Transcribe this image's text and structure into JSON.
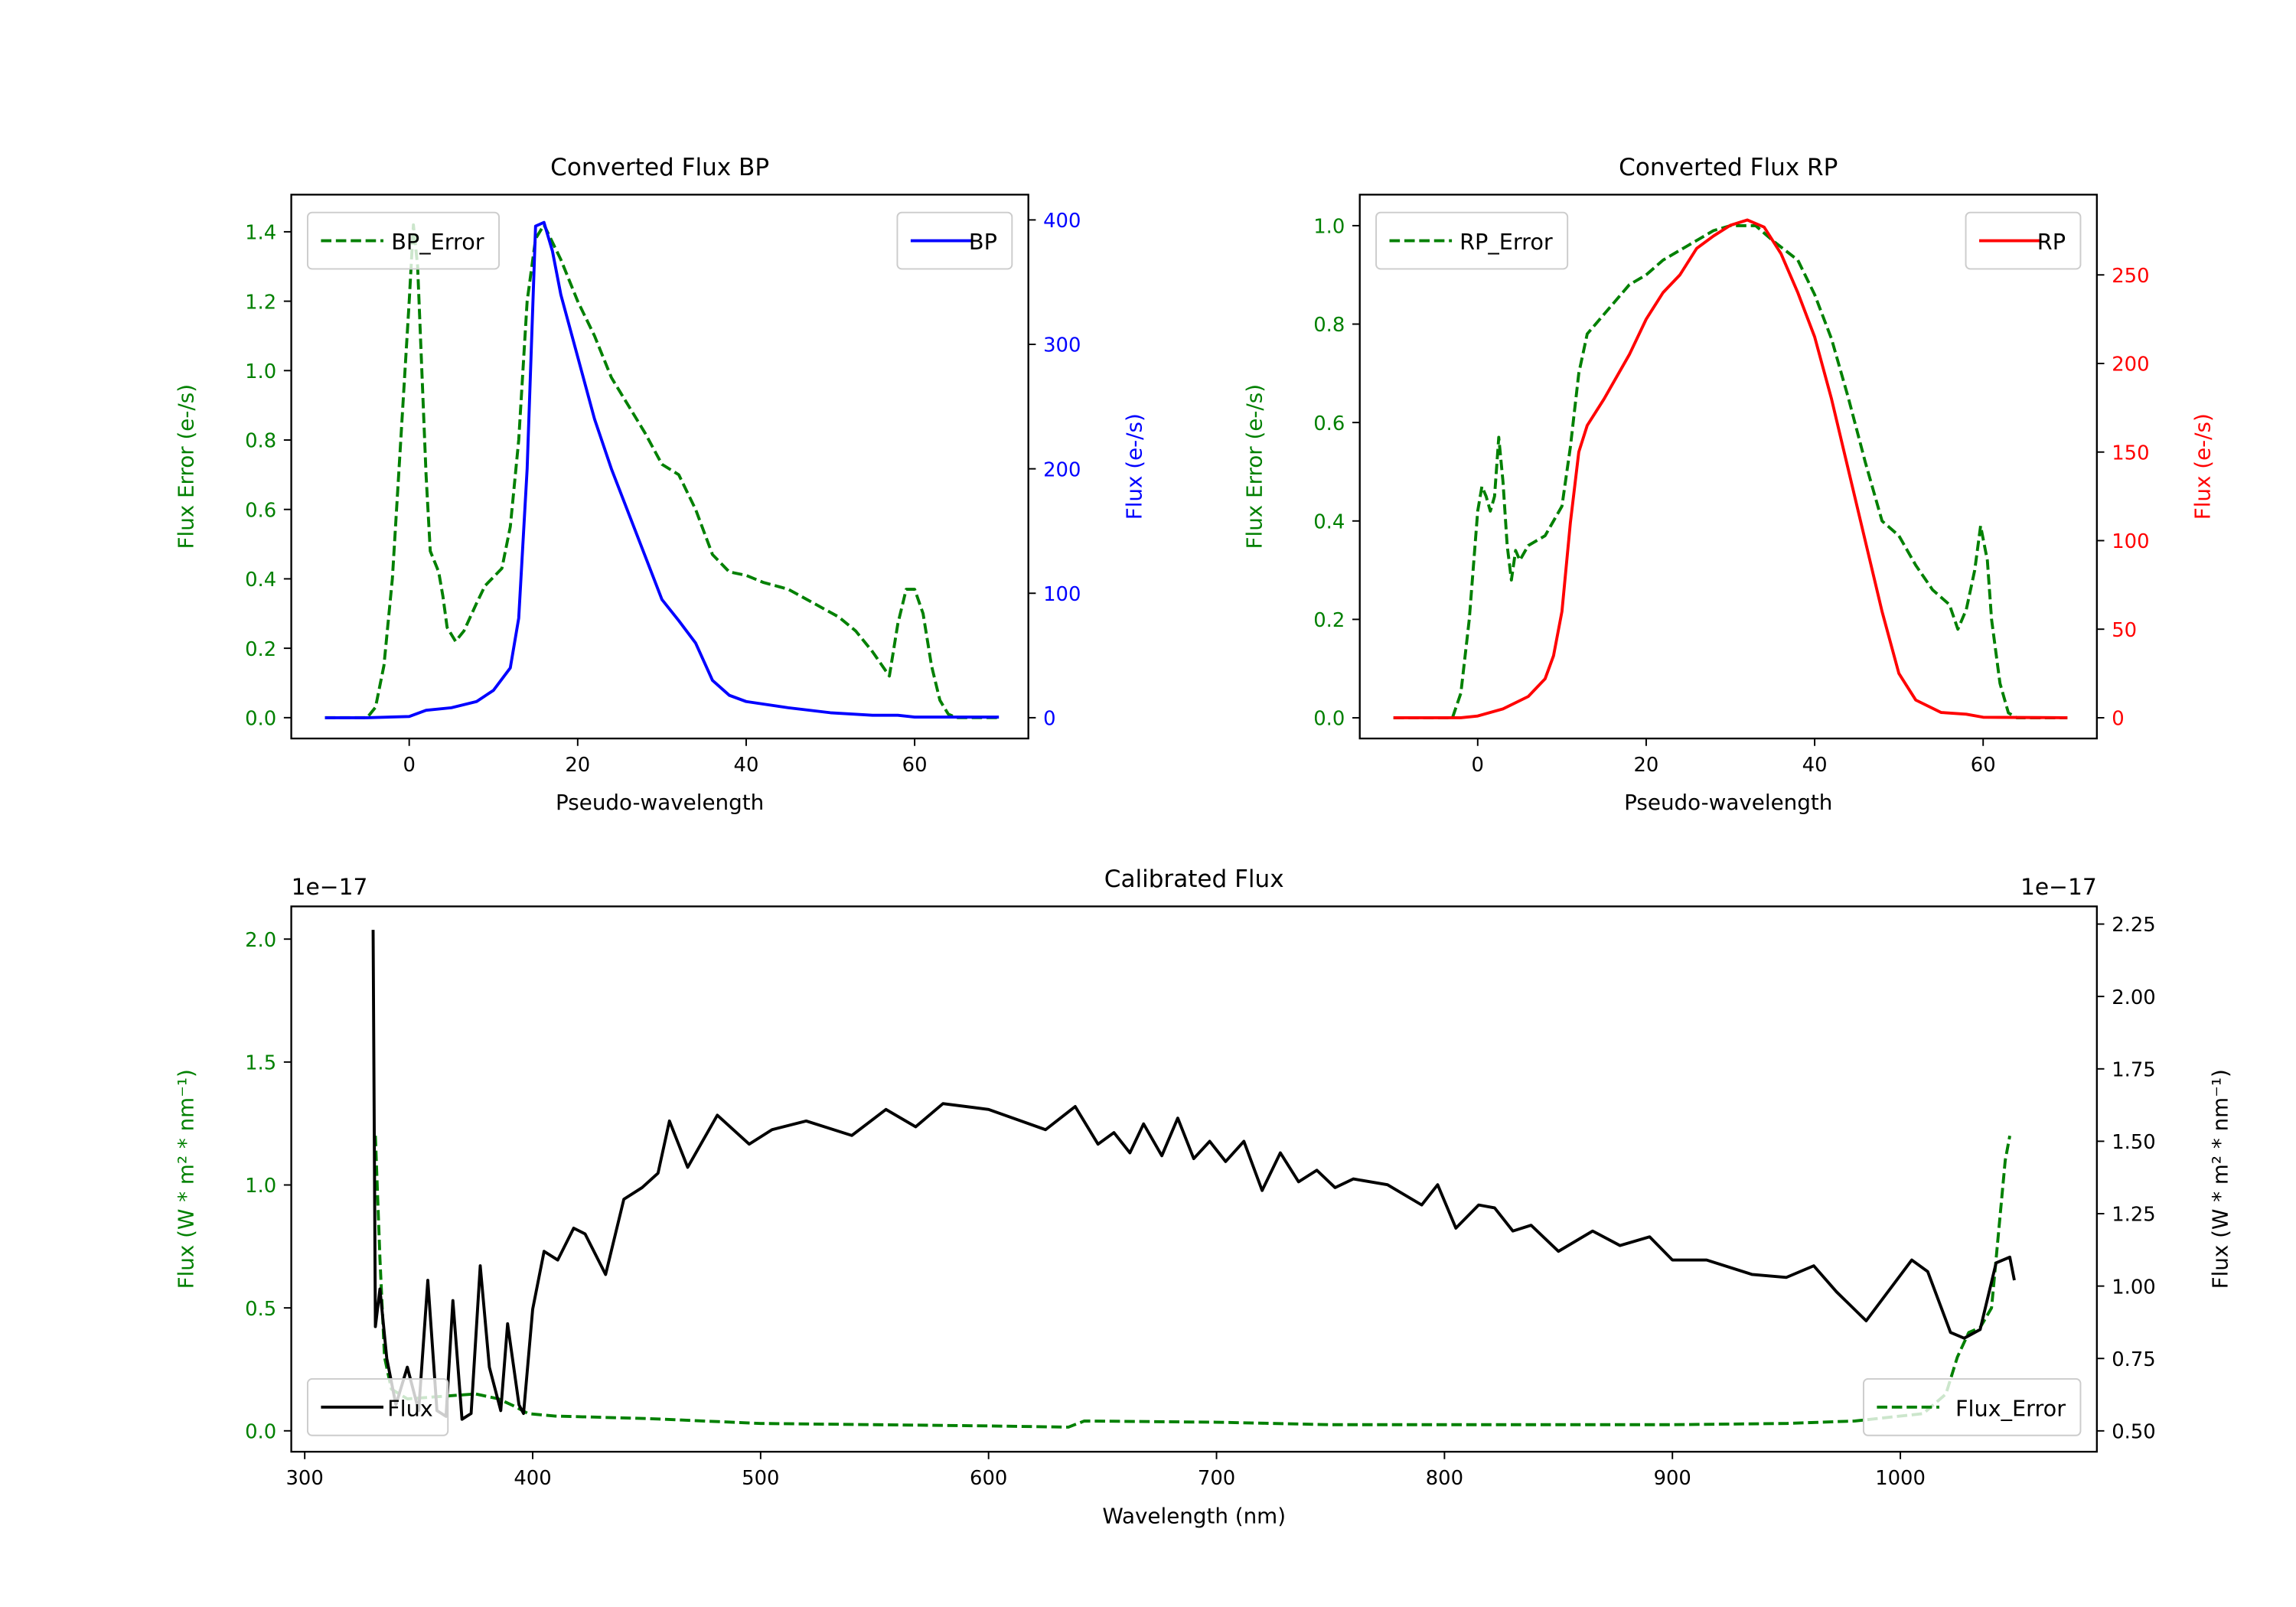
{
  "colors": {
    "error": "#008000",
    "bp": "#0000ff",
    "rp": "#ff0000",
    "flux": "#000000"
  },
  "chart_data": [
    {
      "type": "line",
      "title": "Converted Flux BP",
      "xlabel": "Pseudo-wavelength",
      "ylabel_left": "Flux Error (e-/s)",
      "ylabel_right": "Flux (e-/s)",
      "xlim": [
        -14,
        73.5
      ],
      "ylim_left": [
        -0.06,
        1.507
      ],
      "ylim_right": [
        -16.7,
        420.3
      ],
      "xticks": [
        0,
        20,
        40,
        60
      ],
      "yticks_left": [
        "0.0",
        "0.2",
        "0.4",
        "0.6",
        "0.8",
        "1.0",
        "1.2",
        "1.4"
      ],
      "yticks_right": [
        "0",
        "100",
        "200",
        "300",
        "400"
      ],
      "left_axis_color": "#008000",
      "right_axis_color": "#0000ff",
      "legend_left": {
        "label": "BP_Error",
        "placement": "upper-left"
      },
      "legend_right": {
        "label": "BP",
        "placement": "upper-right"
      },
      "series": [
        {
          "name": "BP_Error",
          "axis": "left",
          "style": "dashed",
          "color": "#008000",
          "x": [
            -10,
            -5,
            -4,
            -3,
            -2,
            -1,
            0,
            0.5,
            1,
            1.5,
            2,
            2.5,
            3,
            3.5,
            4,
            4.5,
            5.5,
            6.5,
            8,
            9,
            11,
            12,
            13,
            14,
            15,
            16,
            18,
            20,
            22,
            24,
            26,
            28,
            30,
            32,
            34,
            36,
            38,
            40,
            42,
            45,
            48,
            51,
            53,
            55,
            57,
            58,
            59,
            60,
            61,
            62,
            63,
            64,
            65,
            70
          ],
          "y": [
            0,
            0,
            0.03,
            0.15,
            0.4,
            0.8,
            1.2,
            1.42,
            1.3,
            1.0,
            0.7,
            0.48,
            0.45,
            0.42,
            0.35,
            0.26,
            0.22,
            0.25,
            0.33,
            0.38,
            0.43,
            0.55,
            0.8,
            1.2,
            1.38,
            1.42,
            1.32,
            1.2,
            1.1,
            0.98,
            0.9,
            0.82,
            0.73,
            0.7,
            0.6,
            0.47,
            0.42,
            0.41,
            0.39,
            0.37,
            0.33,
            0.29,
            0.25,
            0.19,
            0.12,
            0.27,
            0.37,
            0.37,
            0.3,
            0.15,
            0.05,
            0.01,
            0,
            0
          ]
        },
        {
          "name": "BP",
          "axis": "right",
          "style": "solid",
          "color": "#0000ff",
          "x": [
            -10,
            -5,
            0,
            2,
            5,
            8,
            10,
            12,
            13,
            14,
            15,
            16,
            17,
            18,
            20,
            22,
            24,
            26,
            28,
            30,
            32,
            34,
            36,
            38,
            40,
            42,
            45,
            50,
            55,
            58,
            60,
            65,
            70
          ],
          "y": [
            0,
            0,
            1,
            6,
            8,
            13,
            22,
            40,
            80,
            200,
            395,
            398,
            375,
            340,
            290,
            240,
            200,
            165,
            130,
            95,
            78,
            60,
            30,
            18,
            13,
            11,
            8,
            4,
            2,
            2,
            0.5,
            0.5,
            0.5
          ]
        }
      ]
    },
    {
      "type": "line",
      "title": "Converted Flux RP",
      "xlabel": "Pseudo-wavelength",
      "ylabel_left": "Flux Error (e-/s)",
      "ylabel_right": "Flux (e-/s)",
      "xlim": [
        -14,
        73.5
      ],
      "ylim_left": [
        -0.042,
        1.063
      ],
      "ylim_right": [
        -11.7,
        295.3
      ],
      "xticks": [
        0,
        20,
        40,
        60
      ],
      "yticks_left": [
        "0.0",
        "0.2",
        "0.4",
        "0.6",
        "0.8",
        "1.0"
      ],
      "yticks_right": [
        "0",
        "50",
        "100",
        "150",
        "200",
        "250"
      ],
      "left_axis_color": "#008000",
      "right_axis_color": "#ff0000",
      "legend_left": {
        "label": "RP_Error",
        "placement": "upper-left"
      },
      "legend_right": {
        "label": "RP",
        "placement": "upper-right"
      },
      "series": [
        {
          "name": "RP_Error",
          "axis": "left",
          "style": "dashed",
          "color": "#008000",
          "x": [
            -10,
            -3,
            -2,
            -1,
            0,
            0.5,
            1,
            1.5,
            2,
            2.5,
            3,
            3.5,
            4,
            4.5,
            5,
            6,
            8,
            10,
            11,
            12,
            13,
            15,
            18,
            20,
            22,
            25,
            28,
            30,
            33,
            35,
            38,
            40,
            42,
            44,
            46,
            48,
            50,
            52,
            54,
            56,
            57,
            58,
            59,
            59.7,
            60.5,
            61,
            62,
            63,
            64,
            70
          ],
          "y": [
            0,
            0,
            0.05,
            0.2,
            0.42,
            0.47,
            0.45,
            0.42,
            0.45,
            0.57,
            0.48,
            0.35,
            0.28,
            0.34,
            0.32,
            0.35,
            0.37,
            0.43,
            0.55,
            0.7,
            0.78,
            0.82,
            0.88,
            0.9,
            0.93,
            0.96,
            0.99,
            1.0,
            1.0,
            0.97,
            0.93,
            0.86,
            0.77,
            0.65,
            0.52,
            0.4,
            0.37,
            0.31,
            0.26,
            0.23,
            0.18,
            0.22,
            0.3,
            0.39,
            0.32,
            0.2,
            0.07,
            0.01,
            0,
            0
          ]
        },
        {
          "name": "RP",
          "axis": "right",
          "style": "solid",
          "color": "#ff0000",
          "x": [
            -10,
            -2,
            0,
            3,
            6,
            8,
            9,
            10,
            11,
            12,
            13,
            15,
            18,
            20,
            22,
            24,
            26,
            28,
            30,
            32,
            34,
            36,
            38,
            40,
            42,
            44,
            46,
            48,
            50,
            52,
            55,
            58,
            60,
            70
          ],
          "y": [
            0,
            0,
            1,
            5,
            12,
            22,
            35,
            60,
            110,
            150,
            165,
            180,
            205,
            225,
            240,
            250,
            265,
            272,
            278,
            281,
            277,
            262,
            240,
            215,
            180,
            140,
            100,
            60,
            25,
            10,
            3,
            2,
            0.3,
            0
          ]
        }
      ]
    },
    {
      "type": "line",
      "title": "Calibrated Flux",
      "xlabel": "Wavelength (nm)",
      "ylabel_left": "Flux (W * m² * nm⁻¹)",
      "ylabel_right": "Flux (W * m² * nm⁻¹)",
      "offset_left": "1e−17",
      "offset_right": "1e−17",
      "xlim": [
        294.1,
        1086.2
      ],
      "ylim_left": [
        -0.085,
        2.133
      ],
      "ylim_right": [
        0.428,
        2.311
      ],
      "xticks": [
        300,
        400,
        500,
        600,
        700,
        800,
        900,
        1000
      ],
      "yticks_left": [
        "0.0",
        "0.5",
        "1.0",
        "1.5",
        "2.0"
      ],
      "yticks_right": [
        "0.50",
        "0.75",
        "1.00",
        "1.25",
        "1.50",
        "1.75",
        "2.00",
        "2.25"
      ],
      "left_axis_color": "#008000",
      "right_axis_color": "#000000",
      "legend_left": {
        "label": "Flux",
        "placement": "lower-left"
      },
      "legend_right": {
        "label": "Flux_Error",
        "placement": "lower-right"
      },
      "series": [
        {
          "name": "Flux_Error",
          "axis": "left",
          "style": "dashed",
          "color": "#008000",
          "x": [
            331,
            333,
            335,
            338,
            345,
            360,
            375,
            385,
            392,
            398,
            410,
            450,
            500,
            550,
            600,
            635,
            642,
            700,
            750,
            800,
            900,
            950,
            980,
            1010,
            1020,
            1025,
            1030,
            1035,
            1040,
            1043,
            1046,
            1048
          ],
          "y": [
            1.2,
            0.7,
            0.3,
            0.17,
            0.13,
            0.14,
            0.15,
            0.13,
            0.1,
            0.07,
            0.06,
            0.05,
            0.03,
            0.025,
            0.02,
            0.015,
            0.04,
            0.035,
            0.025,
            0.025,
            0.025,
            0.03,
            0.04,
            0.07,
            0.15,
            0.3,
            0.4,
            0.42,
            0.5,
            0.8,
            1.1,
            1.2
          ]
        },
        {
          "name": "Flux",
          "axis": "right",
          "style": "solid",
          "color": "#000000",
          "x": [
            330,
            331,
            333,
            336,
            340,
            345,
            350,
            354,
            358,
            362,
            365,
            369,
            373,
            377,
            381,
            386,
            389,
            394,
            396,
            400,
            405,
            411,
            418,
            423,
            432,
            440,
            448,
            455,
            460,
            468,
            481,
            495,
            505,
            520,
            540,
            555,
            568,
            580,
            600,
            625,
            638,
            648,
            655,
            662,
            668,
            676,
            683,
            690,
            697,
            704,
            712,
            720,
            728,
            736,
            744,
            752,
            760,
            775,
            790,
            797,
            805,
            815,
            822,
            830,
            838,
            850,
            865,
            877,
            890,
            900,
            915,
            935,
            950,
            962,
            972,
            985,
            1005,
            1012,
            1022,
            1028,
            1035,
            1042,
            1048,
            1050
          ],
          "y": [
            2.23,
            0.86,
            0.99,
            0.75,
            0.59,
            0.72,
            0.57,
            1.02,
            0.57,
            0.55,
            0.95,
            0.54,
            0.56,
            1.07,
            0.72,
            0.57,
            0.87,
            0.59,
            0.56,
            0.92,
            1.12,
            1.09,
            1.2,
            1.18,
            1.04,
            1.3,
            1.34,
            1.39,
            1.57,
            1.41,
            1.59,
            1.49,
            1.54,
            1.57,
            1.52,
            1.61,
            1.55,
            1.63,
            1.61,
            1.54,
            1.62,
            1.49,
            1.53,
            1.46,
            1.56,
            1.45,
            1.58,
            1.44,
            1.5,
            1.43,
            1.5,
            1.33,
            1.46,
            1.36,
            1.4,
            1.34,
            1.37,
            1.35,
            1.28,
            1.35,
            1.2,
            1.28,
            1.27,
            1.19,
            1.21,
            1.12,
            1.19,
            1.14,
            1.17,
            1.09,
            1.09,
            1.04,
            1.03,
            1.07,
            0.98,
            0.88,
            1.09,
            1.05,
            0.84,
            0.82,
            0.85,
            1.08,
            1.1,
            1.02
          ]
        }
      ]
    }
  ]
}
